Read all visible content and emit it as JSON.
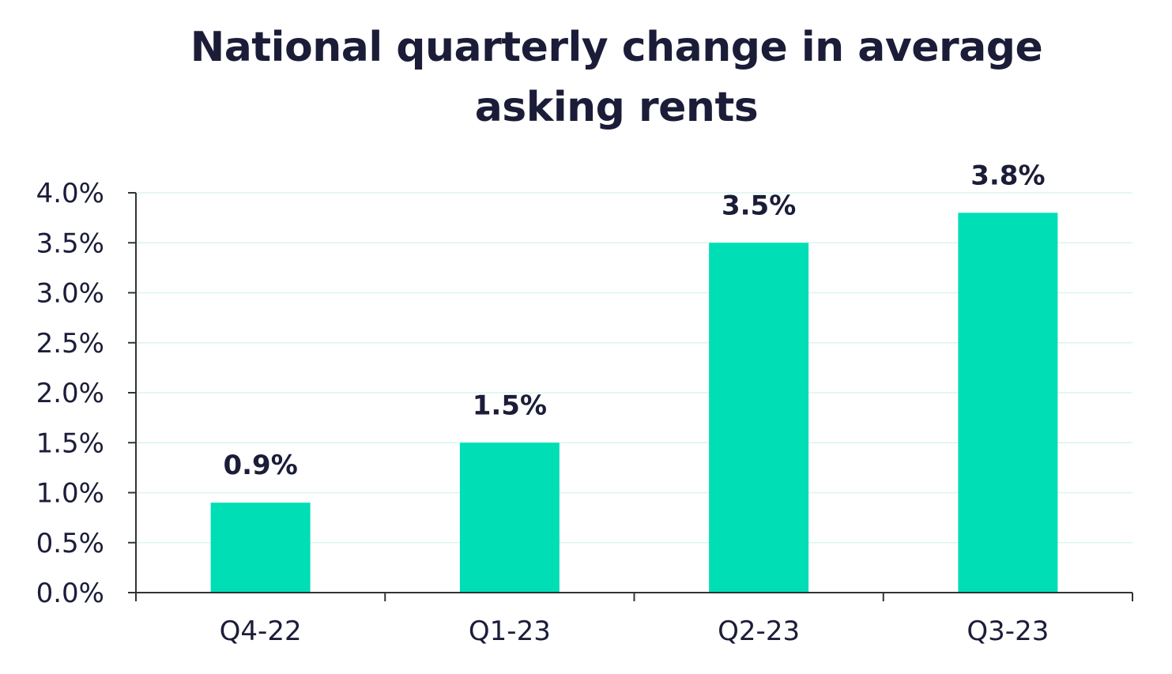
{
  "chart_data": {
    "type": "bar",
    "title_lines": [
      "National quarterly change in average",
      "asking rents"
    ],
    "categories": [
      "Q4-22",
      "Q1-23",
      "Q2-23",
      "Q3-23"
    ],
    "values": [
      0.9,
      1.5,
      3.5,
      3.8
    ],
    "data_labels": [
      "0.9%",
      "1.5%",
      "3.5%",
      "3.8%"
    ],
    "ylim": [
      0,
      4.0
    ],
    "y_ticks": [
      0,
      0.5,
      1.0,
      1.5,
      2.0,
      2.5,
      3.0,
      3.5,
      4.0
    ],
    "y_tick_labels": [
      "0.0%",
      "0.5%",
      "1.0%",
      "1.5%",
      "2.0%",
      "2.5%",
      "3.0%",
      "3.5%",
      "4.0%"
    ],
    "grid": true,
    "legend": "none",
    "colors": {
      "bar": "#00deb6",
      "grid": "#d9f6ef",
      "axis": "#333333",
      "text": "#1b1d38"
    }
  }
}
